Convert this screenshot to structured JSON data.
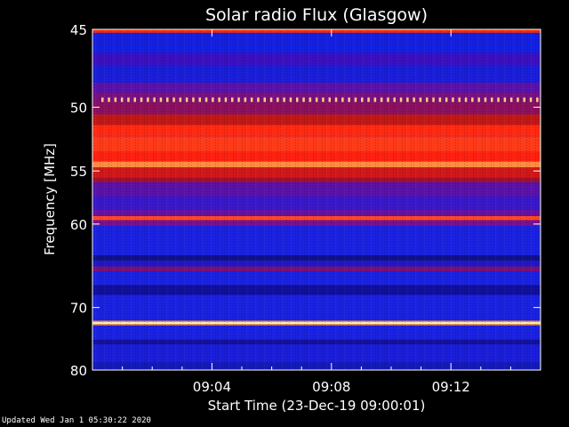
{
  "chart_data": {
    "type": "heatmap",
    "title": "Solar radio Flux (Glasgow)",
    "ylabel": "Frequency [MHz]",
    "xlabel": "Start Time (23-Dec-19 09:00:01)",
    "x_range_minutes": [
      0,
      15
    ],
    "x_ticks": [
      {
        "minute": 4,
        "label": "09:04"
      },
      {
        "minute": 8,
        "label": "09:08"
      },
      {
        "minute": 12,
        "label": "09:12"
      }
    ],
    "ylim": [
      45,
      80
    ],
    "y_ticks": [
      45,
      50,
      55,
      60,
      70,
      80
    ],
    "bands": [
      {
        "from": 45.0,
        "to": 45.2,
        "color": "#ff2a00"
      },
      {
        "from": 45.2,
        "to": 46.4,
        "color": "#1420e0"
      },
      {
        "from": 46.4,
        "to": 47.2,
        "color": "#3a10c0"
      },
      {
        "from": 47.2,
        "to": 48.3,
        "color": "#1a1ed8"
      },
      {
        "from": 48.3,
        "to": 49.0,
        "color": "#5a12a8"
      },
      {
        "from": 49.0,
        "to": 49.6,
        "color": "#7a1080"
      },
      {
        "from": 49.6,
        "to": 50.5,
        "color": "#8a1060"
      },
      {
        "from": 50.5,
        "to": 51.3,
        "color": "#c01818"
      },
      {
        "from": 51.3,
        "to": 52.2,
        "color": "#ff2a10"
      },
      {
        "from": 52.2,
        "to": 53.4,
        "color": "#ff3a18"
      },
      {
        "from": 53.4,
        "to": 54.2,
        "color": "#ff2010"
      },
      {
        "from": 54.2,
        "to": 54.7,
        "color": "#ff8c40"
      },
      {
        "from": 54.7,
        "to": 55.6,
        "color": "#d01818"
      },
      {
        "from": 55.6,
        "to": 56.0,
        "color": "#a01030"
      },
      {
        "from": 56.0,
        "to": 57.3,
        "color": "#5a12a8"
      },
      {
        "from": 57.3,
        "to": 58.6,
        "color": "#3a18c8"
      },
      {
        "from": 58.6,
        "to": 59.2,
        "color": "#6a10a0"
      },
      {
        "from": 59.2,
        "to": 59.6,
        "color": "#ff4a20"
      },
      {
        "from": 59.6,
        "to": 60.2,
        "color": "#7a1090"
      },
      {
        "from": 60.2,
        "to": 63.4,
        "color": "#1a22e0"
      },
      {
        "from": 63.4,
        "to": 64.0,
        "color": "#10108a"
      },
      {
        "from": 64.0,
        "to": 64.7,
        "color": "#2018c0"
      },
      {
        "from": 64.7,
        "to": 65.3,
        "color": "#7a1078"
      },
      {
        "from": 65.3,
        "to": 67.0,
        "color": "#1a22e0"
      },
      {
        "from": 67.0,
        "to": 68.3,
        "color": "#10109a"
      },
      {
        "from": 68.3,
        "to": 71.9,
        "color": "#1a22e0"
      },
      {
        "from": 71.9,
        "to": 72.1,
        "color": "#ff9030"
      },
      {
        "from": 72.1,
        "to": 72.4,
        "color": "#fff2b0"
      },
      {
        "from": 72.4,
        "to": 72.6,
        "color": "#ff9030"
      },
      {
        "from": 72.6,
        "to": 74.8,
        "color": "#1a22e0"
      },
      {
        "from": 74.8,
        "to": 75.6,
        "color": "#12129c"
      },
      {
        "from": 75.6,
        "to": 78.6,
        "color": "#1a1ed8"
      },
      {
        "from": 78.6,
        "to": 80.0,
        "color": "#141ab8"
      }
    ],
    "dotted_line_mhz": 49.5,
    "dot_color": "#ffd080"
  },
  "footer": {
    "updated": "Updated Wed Jan  1 05:30:22 2020"
  }
}
